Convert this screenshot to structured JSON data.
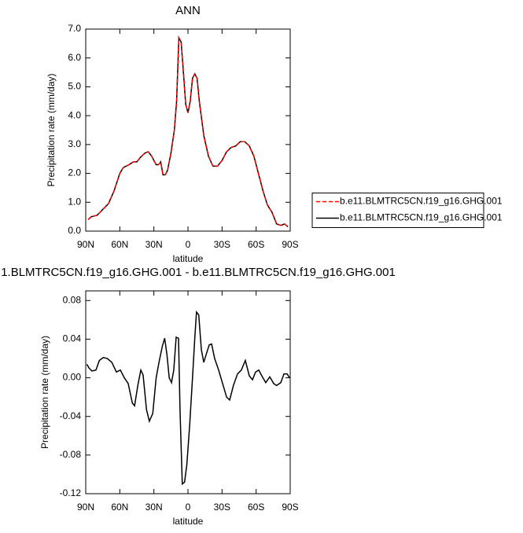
{
  "chart_data": [
    {
      "type": "line",
      "title": "ANN",
      "xlabel": "latitude",
      "ylabel": "Precipitation rate (mm/day)",
      "x": [
        88,
        85,
        80,
        75,
        70,
        65,
        60,
        57,
        52,
        48,
        45,
        42,
        38,
        35,
        32,
        28,
        26,
        24,
        22,
        20,
        18,
        15,
        12,
        10,
        8,
        6,
        4,
        2,
        0,
        -2,
        -4,
        -6,
        -8,
        -10,
        -14,
        -18,
        -22,
        -26,
        -30,
        -34,
        -38,
        -42,
        -46,
        -50,
        -54,
        -58,
        -62,
        -66,
        -70,
        -74,
        -78,
        -82,
        -85,
        -88
      ],
      "series": [
        {
          "name": "b.e11.BLMTRC5CN.f19_g16.GHG.001",
          "color": "#ff0000",
          "line_style": "dashed",
          "values": [
            0.4,
            0.5,
            0.55,
            0.75,
            0.95,
            1.4,
            2.0,
            2.2,
            2.3,
            2.4,
            2.4,
            2.55,
            2.7,
            2.75,
            2.6,
            2.3,
            2.3,
            2.4,
            1.95,
            1.95,
            2.1,
            2.7,
            3.5,
            4.5,
            6.7,
            6.55,
            5.5,
            4.4,
            4.1,
            4.5,
            5.3,
            5.45,
            5.3,
            4.5,
            3.3,
            2.6,
            2.25,
            2.25,
            2.45,
            2.75,
            2.9,
            2.95,
            3.1,
            3.1,
            2.95,
            2.6,
            2.0,
            1.4,
            0.9,
            0.65,
            0.25,
            0.2,
            0.25,
            0.15
          ]
        },
        {
          "name": "b.e11.BLMTRC5CN.f19_g16.GHG.001",
          "color": "#000000",
          "line_style": "solid",
          "values": [
            0.4,
            0.5,
            0.55,
            0.75,
            0.95,
            1.4,
            2.0,
            2.2,
            2.3,
            2.4,
            2.4,
            2.55,
            2.7,
            2.75,
            2.6,
            2.3,
            2.3,
            2.4,
            1.95,
            1.95,
            2.1,
            2.7,
            3.5,
            4.5,
            6.7,
            6.55,
            5.5,
            4.4,
            4.1,
            4.5,
            5.3,
            5.45,
            5.3,
            4.5,
            3.3,
            2.6,
            2.25,
            2.25,
            2.45,
            2.75,
            2.9,
            2.95,
            3.1,
            3.1,
            2.95,
            2.6,
            2.0,
            1.4,
            0.9,
            0.65,
            0.25,
            0.2,
            0.25,
            0.15
          ]
        }
      ],
      "xlim": [
        90,
        -90
      ],
      "xticks": [
        {
          "value": 90,
          "label": "90N"
        },
        {
          "value": 60,
          "label": "60N"
        },
        {
          "value": 30,
          "label": "30N"
        },
        0,
        {
          "value": -30,
          "label": "30S"
        },
        {
          "value": -60,
          "label": "60S"
        },
        {
          "value": -90,
          "label": "90S"
        }
      ],
      "ylim": [
        0,
        7
      ],
      "yticks": [
        {
          "value": 0,
          "label": "0.0"
        },
        {
          "value": 1,
          "label": "1.0"
        },
        {
          "value": 2,
          "label": "2.0"
        },
        {
          "value": 3,
          "label": "3.0"
        },
        {
          "value": 4,
          "label": "4.0"
        },
        {
          "value": 5,
          "label": "5.0"
        },
        {
          "value": 6,
          "label": "6.0"
        },
        {
          "value": 7,
          "label": "7.0"
        }
      ],
      "legend": "right"
    },
    {
      "type": "line",
      "title": "1.BLMTRC5CN.f19_g16.GHG.001 - b.e11.BLMTRC5CN.f19_g16.GHG.001",
      "xlabel": "latitude",
      "ylabel": "Precipitation rate (mm/day)",
      "x": [
        89,
        87,
        84.5,
        81,
        78,
        74.5,
        71,
        67,
        63,
        59.5,
        56,
        52.6,
        49,
        47,
        44,
        41.5,
        39.5,
        36.5,
        34,
        31,
        28,
        25.5,
        22.5,
        20.5,
        18.5,
        16.5,
        14.5,
        12.5,
        10.4,
        8.3,
        7,
        5,
        3,
        1,
        -1.5,
        -4,
        -6,
        -7.5,
        -9.5,
        -11.8,
        -13.9,
        -16,
        -18.7,
        -20.8,
        -23.5,
        -27,
        -30.5,
        -34,
        -36.7,
        -40,
        -43.6,
        -47,
        -50.5,
        -54,
        -56.8,
        -59.5,
        -62.3,
        -65,
        -68.5,
        -72,
        -75.5,
        -78,
        -81.7,
        -84.5,
        -87.3,
        -89.4
      ],
      "series": [
        {
          "color": "#000000",
          "line_style": "solid",
          "values": [
            0.014,
            0.01,
            0.007,
            0.008,
            0.018,
            0.021,
            0.02,
            0.016,
            0.006,
            0.008,
            0,
            -0.006,
            -0.026,
            -0.029,
            -0.007,
            0.008,
            0.003,
            -0.033,
            -0.045,
            -0.037,
            0,
            0.016,
            0.033,
            0.041,
            0.024,
            0,
            -0.005,
            0.008,
            0.042,
            0.041,
            -0.033,
            -0.11,
            -0.108,
            -0.09,
            -0.049,
            0,
            0.041,
            0.068,
            0.065,
            0.029,
            0.016,
            0.024,
            0.034,
            0.035,
            0.02,
            0.008,
            -0.006,
            -0.02,
            -0.023,
            -0.008,
            0.004,
            0.008,
            0.018,
            0.002,
            -0.002,
            0.006,
            0.008,
            0.002,
            -0.005,
            0.001,
            -0.006,
            -0.008,
            -0.005,
            0.004,
            0.004,
            0
          ]
        }
      ],
      "xlim": [
        90,
        -90
      ],
      "xticks": [
        {
          "value": 90,
          "label": "90N"
        },
        {
          "value": 60,
          "label": "60N"
        },
        {
          "value": 30,
          "label": "30N"
        },
        0,
        {
          "value": -30,
          "label": "30S"
        },
        {
          "value": -60,
          "label": "60S"
        },
        {
          "value": -90,
          "label": "90S"
        }
      ],
      "ylim": [
        -0.12,
        0.09
      ],
      "yticks": [
        -0.12,
        -0.08,
        -0.04,
        {
          "value": 0,
          "label": "0.00"
        },
        0.04,
        0.08
      ]
    }
  ]
}
